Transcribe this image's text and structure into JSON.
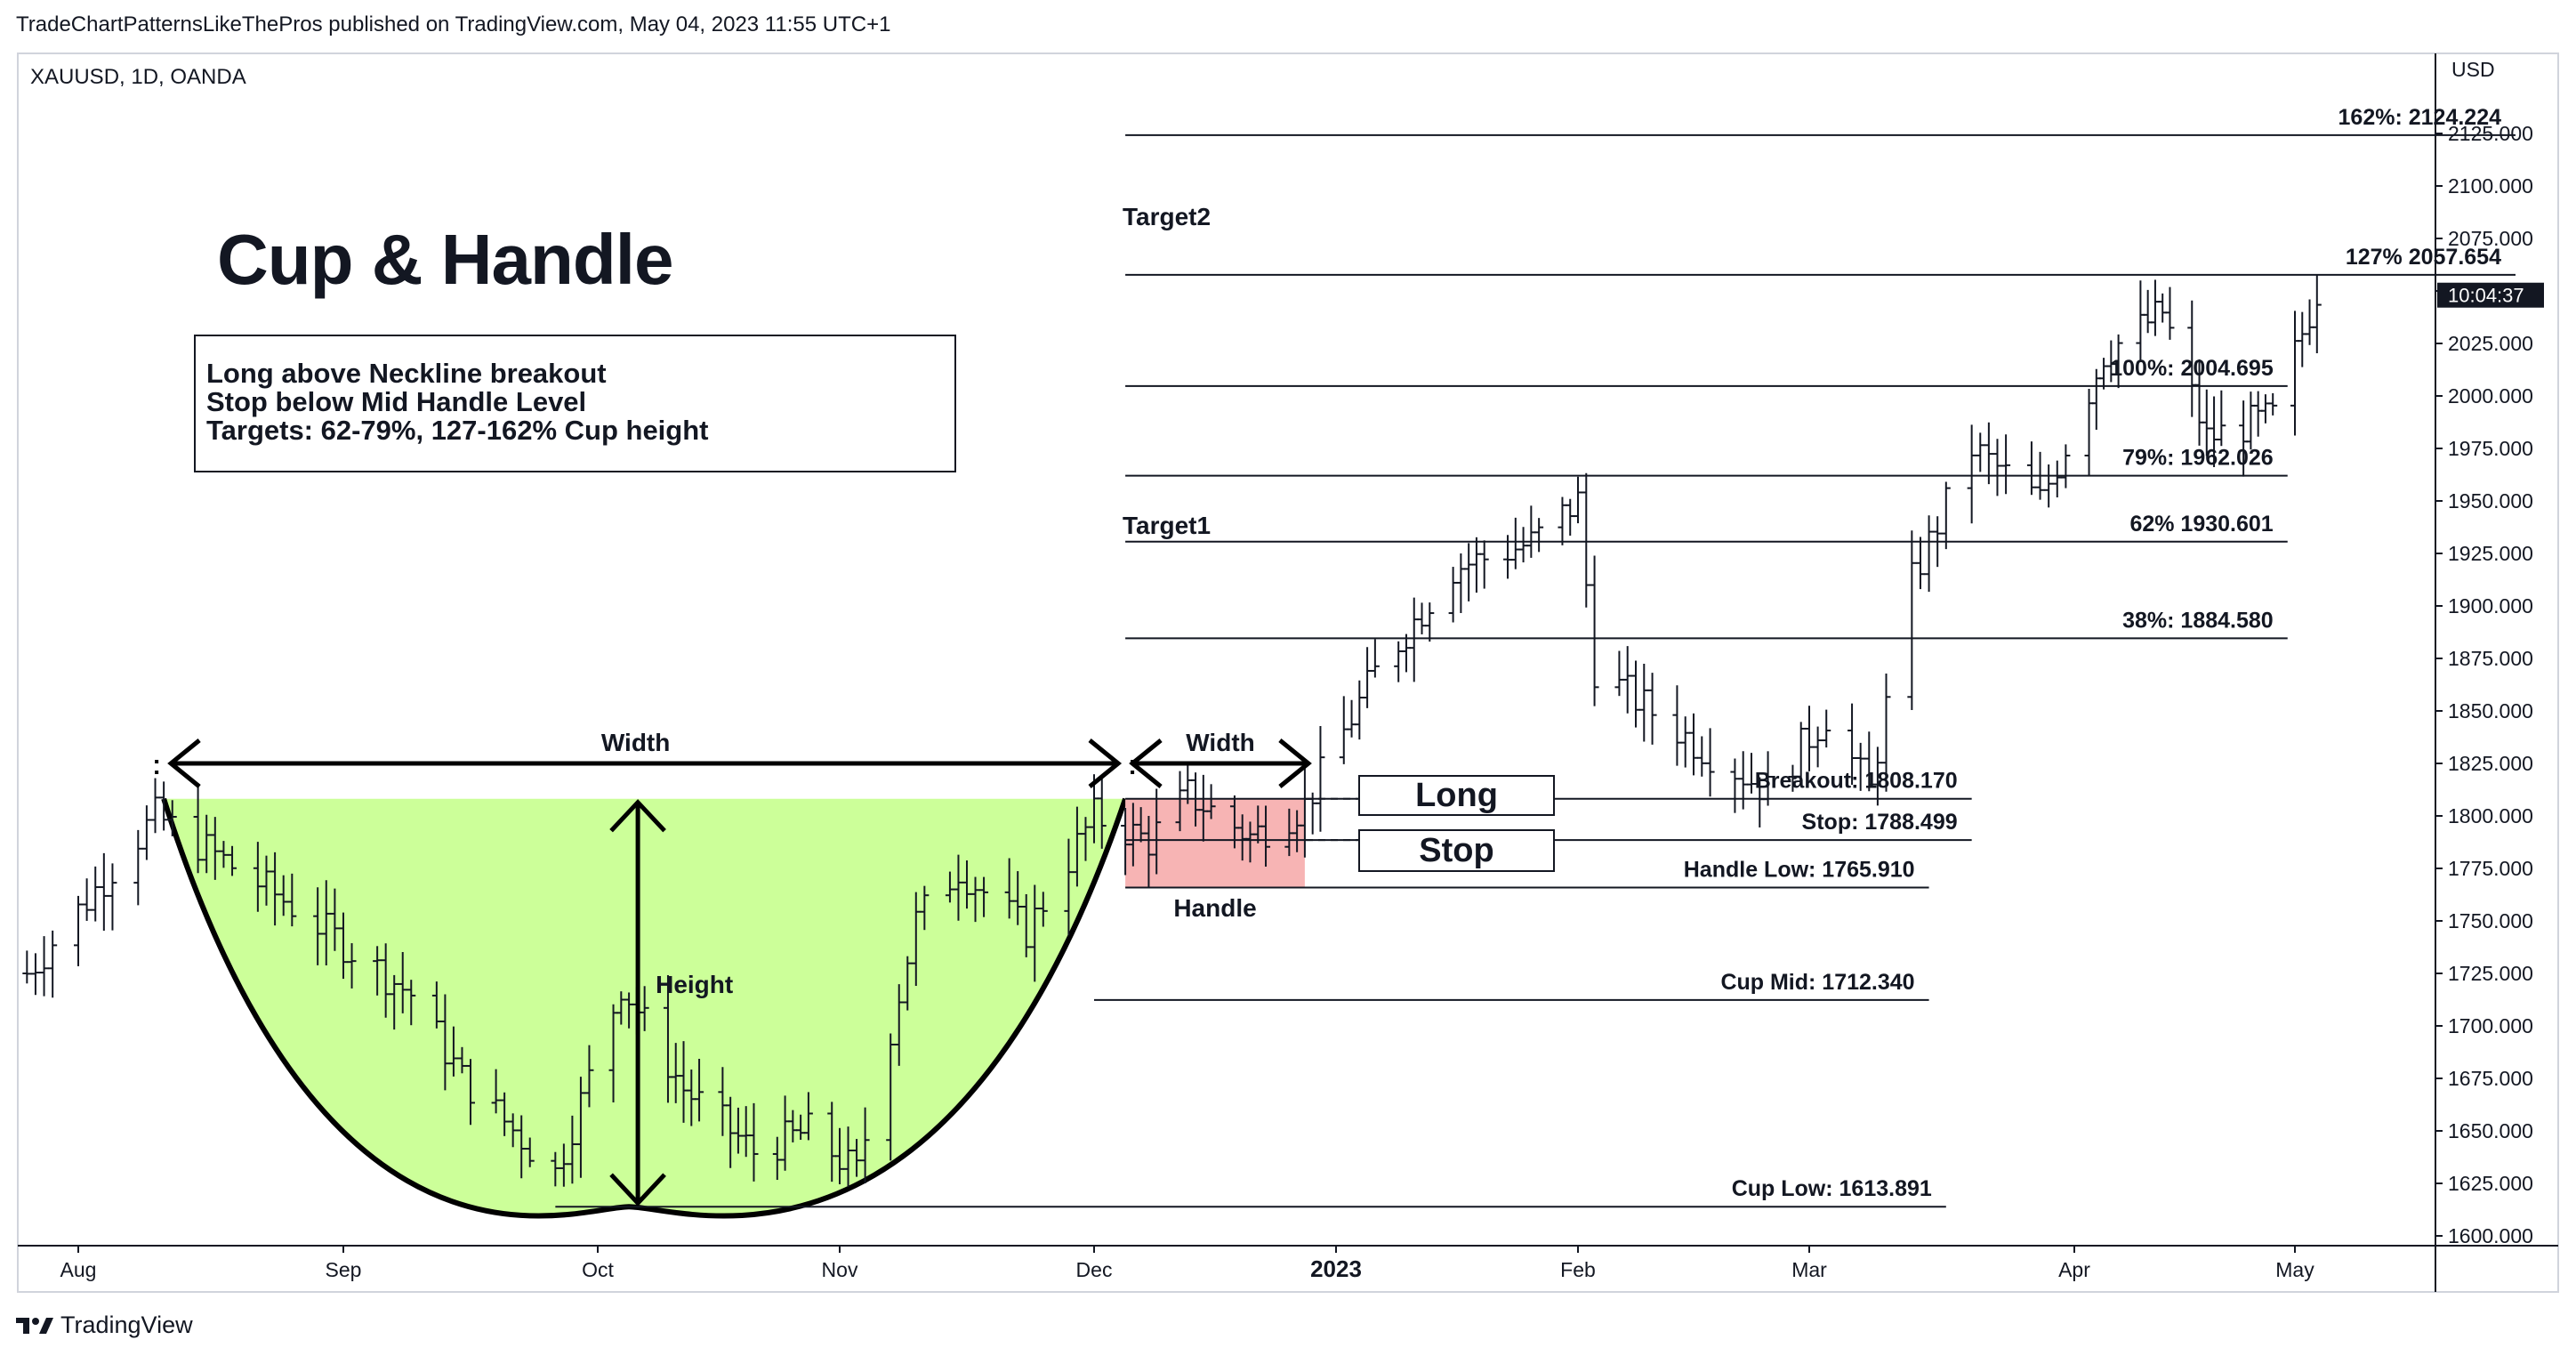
{
  "header": {
    "publisher_line": "TradeChartPatternsLikeThePros published on TradingView.com, May 04, 2023 11:55 UTC+1"
  },
  "symbol_line": "XAUUSD, 1D, OANDA",
  "price_axis": {
    "currency": "USD",
    "last_price_tag": "10:04:37"
  },
  "footer": {
    "brand": "TradingView"
  },
  "colors": {
    "cup_fill": "#ccff99",
    "handle_fill": "#f7b4b4",
    "line": "#131722",
    "last_price_bg": "#131722"
  },
  "annotations": {
    "title": "Cup & Handle",
    "notes": [
      "Long above Neckline breakout",
      "Stop below Mid Handle Level",
      "Targets: 62-79%, 127-162% Cup height"
    ],
    "cup_width": "Width",
    "handle_width": "Width",
    "height": "Height",
    "handle": "Handle",
    "long": "Long",
    "stop": "Stop",
    "target1": "Target1",
    "target2": "Target2"
  },
  "chart_data": {
    "type": "ohlc",
    "symbol": "XAUUSD",
    "timeframe": "1D",
    "ylim": [
      1600,
      2150
    ],
    "y_ticks": [
      1600,
      1625,
      1650,
      1675,
      1700,
      1725,
      1750,
      1775,
      1800,
      1825,
      1850,
      1875,
      1900,
      1925,
      1950,
      1975,
      2000,
      2025,
      2050,
      2075,
      2100,
      2125
    ],
    "x_ticks": [
      {
        "date": "2022-08-01",
        "label": "Aug"
      },
      {
        "date": "2022-09-01",
        "label": "Sep"
      },
      {
        "date": "2022-10-01",
        "label": "Oct"
      },
      {
        "date": "2022-11-01",
        "label": "Nov"
      },
      {
        "date": "2022-12-01",
        "label": "Dec"
      },
      {
        "date": "2023-01-01",
        "label": "2023"
      },
      {
        "date": "2023-02-01",
        "label": "Feb"
      },
      {
        "date": "2023-03-01",
        "label": "Mar"
      },
      {
        "date": "2023-04-01",
        "label": "Apr"
      },
      {
        "date": "2023-05-01",
        "label": "May"
      }
    ],
    "levels": [
      {
        "label": "162%: 2124.224",
        "value": 2124.224,
        "from": "2022-12-05",
        "to": "2023-05-31"
      },
      {
        "label": "127% 2057.654",
        "value": 2057.654,
        "from": "2022-12-05",
        "to": "2023-05-31"
      },
      {
        "label": "100%: 2004.695",
        "value": 2004.695,
        "from": "2022-12-05",
        "to": "2023-04-30"
      },
      {
        "label": "79%: 1962.026",
        "value": 1962.026,
        "from": "2022-12-05",
        "to": "2023-04-30"
      },
      {
        "label": "62% 1930.601",
        "value": 1930.601,
        "from": "2022-12-05",
        "to": "2023-04-30"
      },
      {
        "label": "38%: 1884.580",
        "value": 1884.58,
        "from": "2022-12-05",
        "to": "2023-04-30"
      },
      {
        "label": "Breakout: 1808.170",
        "value": 1808.17,
        "from": "2022-12-05",
        "to": "2023-03-20"
      },
      {
        "label": "Stop: 1788.499",
        "value": 1788.499,
        "from": "2022-12-05",
        "to": "2023-03-20"
      },
      {
        "label": "Handle Low: 1765.910",
        "value": 1765.91,
        "from": "2022-12-05",
        "to": "2023-03-15"
      },
      {
        "label": "Cup Mid: 1712.340",
        "value": 1712.34,
        "from": "2022-12-01",
        "to": "2023-03-15"
      },
      {
        "label": "Cup Low: 1613.891",
        "value": 1613.891,
        "from": "2022-09-26",
        "to": "2023-03-17"
      }
    ],
    "cup": {
      "rim_start": {
        "date": "2022-08-11",
        "price": 1808.17
      },
      "bottom": {
        "date": "2022-10-05",
        "price": 1613.891
      },
      "rim_end": {
        "date": "2022-12-05",
        "price": 1808.17
      }
    },
    "handle_zone": {
      "from": "2022-12-05",
      "to": "2022-12-28",
      "top": 1808.17,
      "bottom": 1765.91
    },
    "anchors": [
      {
        "date": "2022-07-26",
        "price": 1725
      },
      {
        "date": "2022-08-10",
        "price": 1800
      },
      {
        "date": "2022-08-25",
        "price": 1760
      },
      {
        "date": "2022-09-09",
        "price": 1715
      },
      {
        "date": "2022-09-15",
        "price": 1675
      },
      {
        "date": "2022-09-26",
        "price": 1630
      },
      {
        "date": "2022-10-04",
        "price": 1720
      },
      {
        "date": "2022-10-12",
        "price": 1670
      },
      {
        "date": "2022-10-21",
        "price": 1640
      },
      {
        "date": "2022-10-28",
        "price": 1650
      },
      {
        "date": "2022-11-03",
        "price": 1630
      },
      {
        "date": "2022-11-10",
        "price": 1750
      },
      {
        "date": "2022-11-15",
        "price": 1775
      },
      {
        "date": "2022-11-23",
        "price": 1745
      },
      {
        "date": "2022-12-01",
        "price": 1800
      },
      {
        "date": "2022-12-08",
        "price": 1788
      },
      {
        "date": "2022-12-13",
        "price": 1810
      },
      {
        "date": "2022-12-21",
        "price": 1790
      },
      {
        "date": "2022-12-28",
        "price": 1805
      },
      {
        "date": "2023-01-06",
        "price": 1868
      },
      {
        "date": "2023-01-16",
        "price": 1918
      },
      {
        "date": "2023-01-26",
        "price": 1930
      },
      {
        "date": "2023-02-01",
        "price": 1950
      },
      {
        "date": "2023-02-03",
        "price": 1870
      },
      {
        "date": "2023-02-15",
        "price": 1835
      },
      {
        "date": "2023-02-24",
        "price": 1812
      },
      {
        "date": "2023-03-03",
        "price": 1848
      },
      {
        "date": "2023-03-08",
        "price": 1812
      },
      {
        "date": "2023-03-13",
        "price": 1912
      },
      {
        "date": "2023-03-20",
        "price": 1975
      },
      {
        "date": "2023-03-28",
        "price": 1950
      },
      {
        "date": "2023-04-05",
        "price": 2020
      },
      {
        "date": "2023-04-13",
        "price": 2040
      },
      {
        "date": "2023-04-19",
        "price": 1980
      },
      {
        "date": "2023-04-28",
        "price": 1990
      },
      {
        "date": "2023-05-04",
        "price": 2050
      }
    ]
  }
}
